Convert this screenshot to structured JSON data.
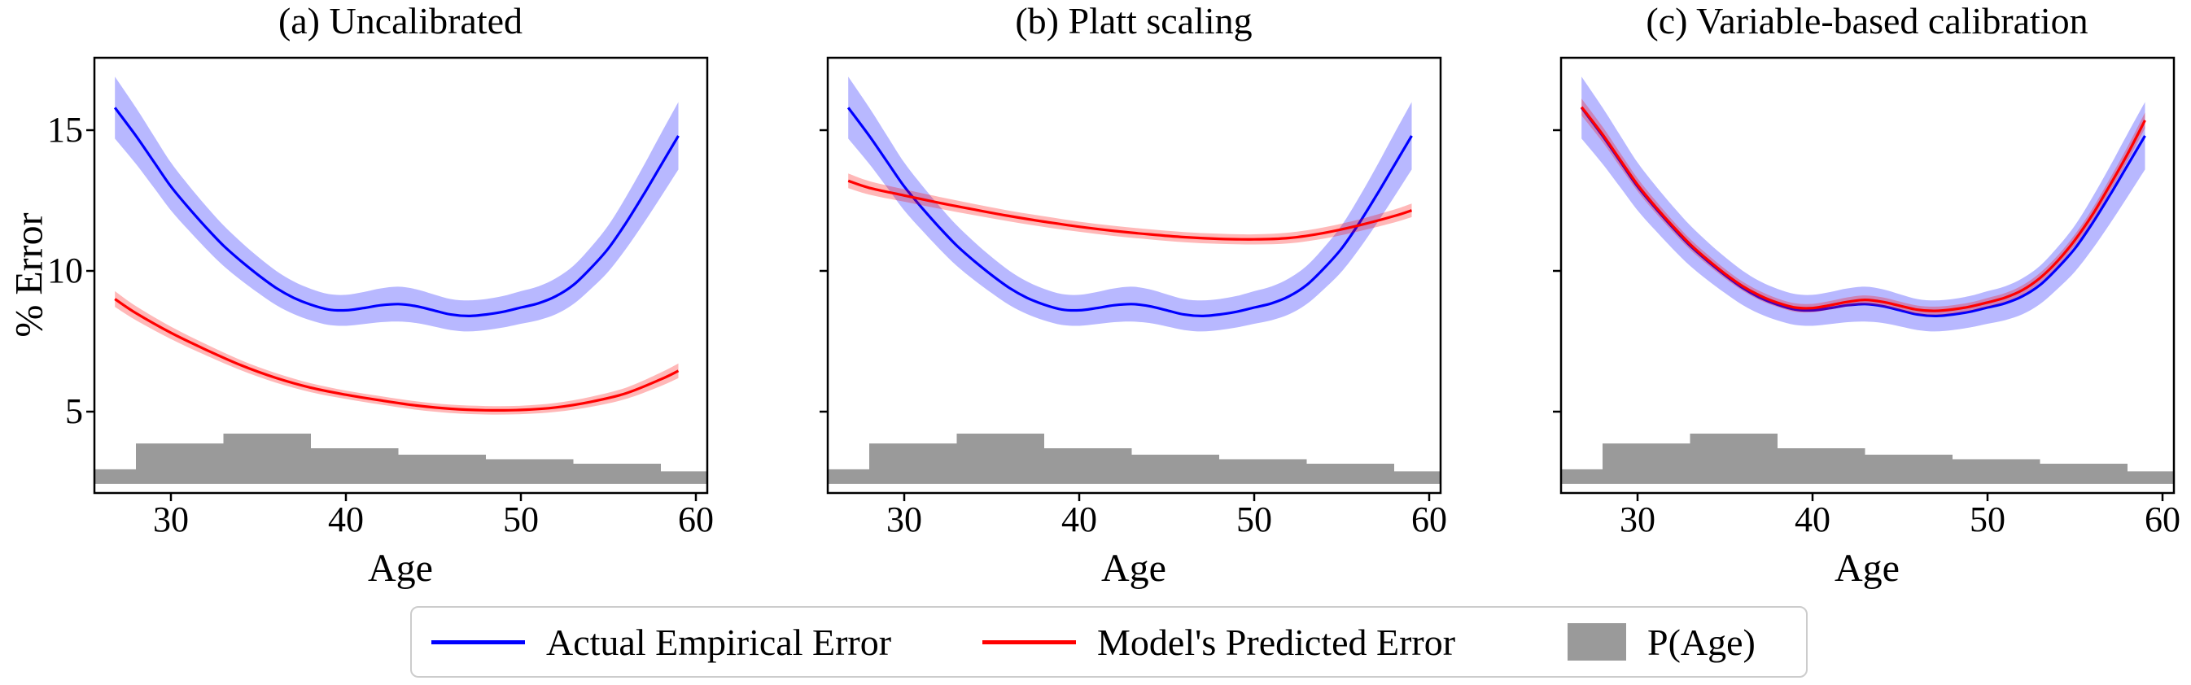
{
  "legend": {
    "items": [
      {
        "label": "Actual Empirical Error",
        "swatch": "line",
        "color": "#0000ff"
      },
      {
        "label": "Model's Predicted Error",
        "swatch": "line",
        "color": "#ff0000"
      },
      {
        "label": "P(Age)",
        "swatch": "patch",
        "color": "#9a9a9a"
      }
    ]
  },
  "chart_data": {
    "type": "line",
    "shared": {
      "axes": {
        "xlabel": "Age",
        "ylabel": "% Error",
        "xlim": [
          25.6,
          60.65
        ],
        "ylim": [
          2.1,
          17.6
        ],
        "xticks": [
          30,
          40,
          50,
          60
        ],
        "yticks": [
          5,
          10,
          15
        ],
        "grid": false
      },
      "actual_empirical_error": {
        "name": "Actual Empirical Error",
        "color": "#0000ff",
        "x": [
          26.8,
          28,
          29,
          30,
          31,
          32,
          33,
          34,
          35,
          36,
          37,
          38,
          39,
          40,
          41,
          42,
          43,
          44,
          45,
          46,
          47,
          48,
          49,
          50,
          51,
          52,
          53,
          54,
          55,
          56,
          57,
          58,
          59
        ],
        "y": [
          15.8,
          14.8,
          13.9,
          13.0,
          12.25,
          11.55,
          10.9,
          10.35,
          9.85,
          9.4,
          9.05,
          8.8,
          8.63,
          8.6,
          8.68,
          8.78,
          8.82,
          8.75,
          8.6,
          8.45,
          8.4,
          8.45,
          8.55,
          8.7,
          8.85,
          9.1,
          9.5,
          10.1,
          10.8,
          11.7,
          12.7,
          13.75,
          14.8
        ],
        "band_halfwidth": [
          1.1,
          1.0,
          0.92,
          0.85,
          0.8,
          0.76,
          0.72,
          0.68,
          0.64,
          0.61,
          0.58,
          0.56,
          0.55,
          0.55,
          0.57,
          0.6,
          0.62,
          0.6,
          0.57,
          0.55,
          0.55,
          0.55,
          0.56,
          0.58,
          0.6,
          0.64,
          0.68,
          0.74,
          0.82,
          0.92,
          1.02,
          1.12,
          1.2
        ]
      },
      "p_age_histogram": {
        "name": "P(Age)",
        "color": "#9a9a9a",
        "bin_edges": [
          25.63,
          28,
          33,
          38,
          43,
          48,
          53,
          58,
          60.65
        ],
        "top_values": [
          2.95,
          3.87,
          4.22,
          3.7,
          3.47,
          3.31,
          3.15,
          2.88
        ],
        "baseline": 2.43
      }
    },
    "panels": [
      {
        "label": "(a) Uncalibrated",
        "predicted_error": {
          "name": "Model's Predicted Error",
          "color": "#ff0000",
          "x": [
            26.8,
            28,
            30,
            32,
            34,
            36,
            38,
            40,
            42,
            44,
            46,
            48,
            50,
            52,
            54,
            56,
            58,
            59
          ],
          "y": [
            9.0,
            8.5,
            7.8,
            7.2,
            6.65,
            6.2,
            5.85,
            5.6,
            5.4,
            5.22,
            5.1,
            5.05,
            5.06,
            5.15,
            5.35,
            5.65,
            6.15,
            6.45
          ],
          "band_halfwidth": [
            0.28,
            0.25,
            0.22,
            0.2,
            0.18,
            0.17,
            0.16,
            0.15,
            0.15,
            0.15,
            0.15,
            0.15,
            0.15,
            0.16,
            0.18,
            0.2,
            0.24,
            0.26
          ]
        }
      },
      {
        "label": "(b) Platt scaling",
        "predicted_error": {
          "name": "Model's Predicted Error",
          "color": "#ff0000",
          "x": [
            26.8,
            28,
            30,
            32,
            34,
            36,
            38,
            40,
            42,
            44,
            46,
            48,
            50,
            52,
            54,
            56,
            58,
            59
          ],
          "y": [
            13.2,
            12.95,
            12.68,
            12.42,
            12.18,
            11.95,
            11.75,
            11.57,
            11.42,
            11.3,
            11.2,
            11.14,
            11.12,
            11.17,
            11.35,
            11.62,
            11.95,
            12.15
          ],
          "band_halfwidth": [
            0.26,
            0.24,
            0.22,
            0.21,
            0.2,
            0.19,
            0.19,
            0.18,
            0.18,
            0.18,
            0.18,
            0.18,
            0.18,
            0.19,
            0.2,
            0.21,
            0.23,
            0.24
          ]
        }
      },
      {
        "label": "(c) Variable-based calibration",
        "predicted_error": {
          "name": "Model's Predicted Error",
          "color": "#ff0000",
          "x": [
            26.8,
            28,
            29,
            30,
            31,
            32,
            33,
            34,
            35,
            36,
            37,
            38,
            39,
            40,
            41,
            42,
            43,
            44,
            45,
            46,
            47,
            48,
            49,
            50,
            51,
            52,
            53,
            54,
            55,
            56,
            57,
            58,
            59
          ],
          "y": [
            15.82,
            14.85,
            13.95,
            13.06,
            12.3,
            11.6,
            10.95,
            10.4,
            9.9,
            9.46,
            9.12,
            8.87,
            8.7,
            8.68,
            8.78,
            8.9,
            8.97,
            8.9,
            8.76,
            8.62,
            8.58,
            8.63,
            8.73,
            8.88,
            9.05,
            9.32,
            9.75,
            10.35,
            11.1,
            12.0,
            13.05,
            14.15,
            15.35
          ],
          "band_halfwidth": [
            0.3,
            0.27,
            0.25,
            0.23,
            0.22,
            0.2,
            0.19,
            0.18,
            0.17,
            0.16,
            0.16,
            0.15,
            0.15,
            0.15,
            0.15,
            0.16,
            0.16,
            0.16,
            0.15,
            0.15,
            0.15,
            0.15,
            0.15,
            0.16,
            0.16,
            0.17,
            0.18,
            0.19,
            0.2,
            0.22,
            0.24,
            0.26,
            0.28
          ]
        }
      }
    ]
  }
}
